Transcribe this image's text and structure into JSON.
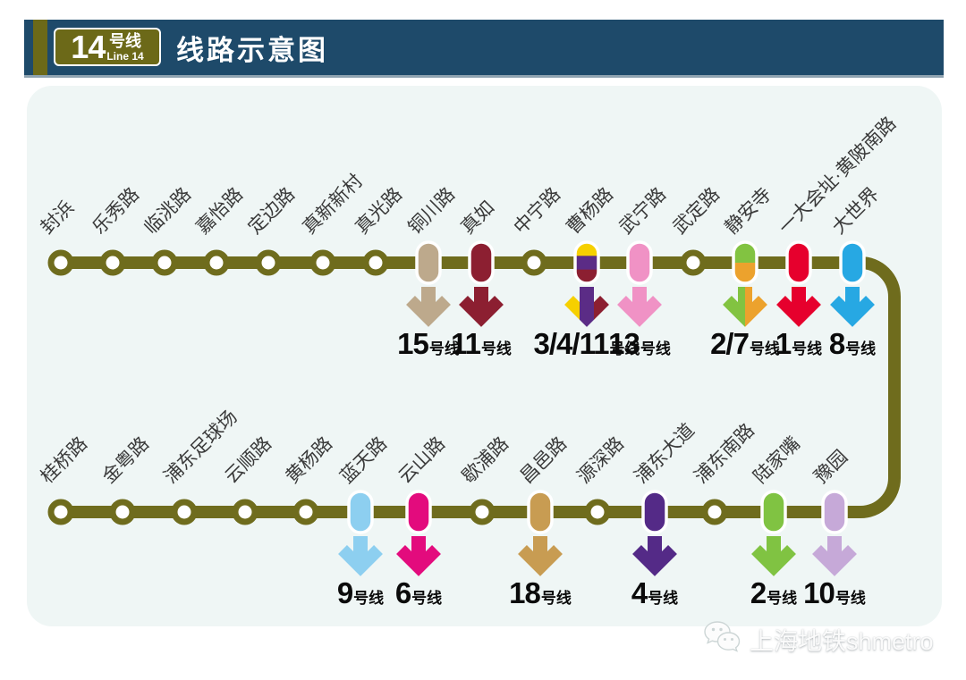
{
  "header": {
    "badge": {
      "number": "14",
      "suffix": "号线",
      "subtitle": "Line 14"
    },
    "title": "线路示意图"
  },
  "line": {
    "name": "14号线",
    "color": "#6F6C1D"
  },
  "transfer_label_suffix": "号线",
  "rows": [
    {
      "id": "upper",
      "stations": [
        {
          "name": "封浜"
        },
        {
          "name": "乐秀路"
        },
        {
          "name": "临洮路"
        },
        {
          "name": "嘉怡路"
        },
        {
          "name": "定边路"
        },
        {
          "name": "真新新村"
        },
        {
          "name": "真光路"
        },
        {
          "name": "铜川路",
          "transfer": {
            "lines": "15",
            "colors": [
              "#BDA98C"
            ]
          }
        },
        {
          "name": "真如",
          "transfer": {
            "lines": "11",
            "colors": [
              "#8C1F31"
            ]
          }
        },
        {
          "name": "中宁路"
        },
        {
          "name": "曹杨路",
          "transfer": {
            "lines": "3/4/11",
            "colors": [
              "#F6D000",
              "#5B2C86",
              "#8C1F31"
            ]
          }
        },
        {
          "name": "武宁路",
          "transfer": {
            "lines": "13",
            "colors": [
              "#F092C5"
            ]
          }
        },
        {
          "name": "武定路"
        },
        {
          "name": "静安寺",
          "transfer": {
            "lines": "2/7",
            "colors": [
              "#82C341",
              "#ECA22D"
            ]
          }
        },
        {
          "name": "一大会址·黄陂南路",
          "transfer": {
            "lines": "1",
            "colors": [
              "#E6002D"
            ]
          }
        },
        {
          "name": "大世界",
          "transfer": {
            "lines": "8",
            "colors": [
              "#27A8E3"
            ]
          }
        }
      ]
    },
    {
      "id": "lower",
      "stations": [
        {
          "name": "桂桥路"
        },
        {
          "name": "金粤路"
        },
        {
          "name": "浦东足球场"
        },
        {
          "name": "云顺路"
        },
        {
          "name": "黄杨路"
        },
        {
          "name": "蓝天路",
          "transfer": {
            "lines": "9",
            "colors": [
              "#8DCFF0"
            ]
          }
        },
        {
          "name": "云山路",
          "transfer": {
            "lines": "6",
            "colors": [
              "#E30B7D"
            ]
          }
        },
        {
          "name": "歇浦路"
        },
        {
          "name": "昌邑路",
          "transfer": {
            "lines": "18",
            "colors": [
              "#C89C52"
            ]
          }
        },
        {
          "name": "源深路"
        },
        {
          "name": "浦东大道",
          "transfer": {
            "lines": "4",
            "colors": [
              "#542A87"
            ]
          }
        },
        {
          "name": "浦东南路"
        },
        {
          "name": "陆家嘴",
          "transfer": {
            "lines": "2",
            "colors": [
              "#80C342"
            ]
          }
        },
        {
          "name": "豫园",
          "transfer": {
            "lines": "10",
            "colors": [
              "#C6A9D8"
            ]
          }
        }
      ]
    }
  ],
  "watermark": {
    "icon": "wechat-icon",
    "text": "上海地铁shmetro"
  }
}
